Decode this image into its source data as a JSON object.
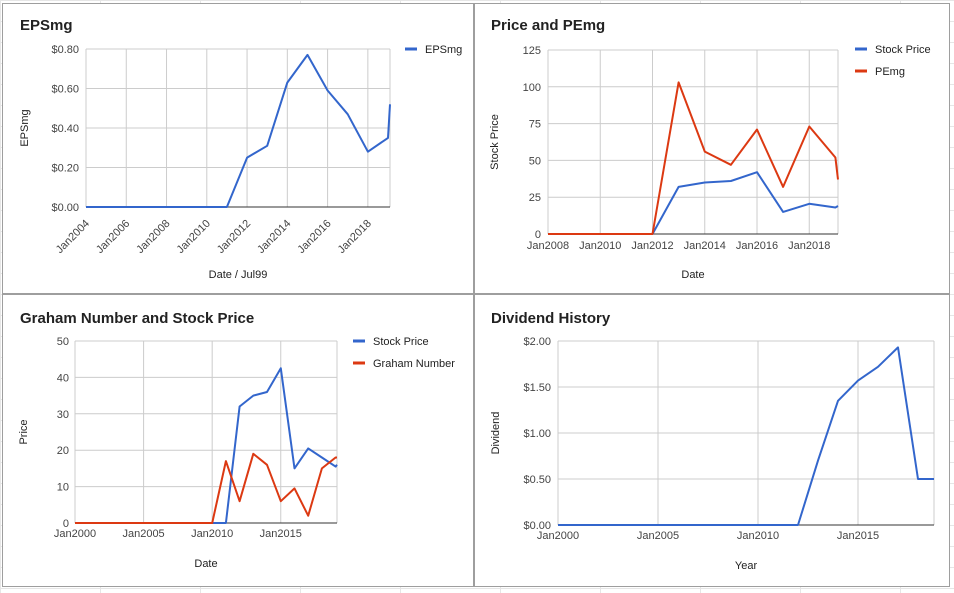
{
  "chart_data": [
    {
      "id": "epsmg",
      "type": "line",
      "title": "EPSmg",
      "xlabel": "Date / Jul99",
      "ylabel": "EPSmg",
      "x_ticks": [
        "Jan2004",
        "Jan2006",
        "Jan2008",
        "Jan2010",
        "Jan2012",
        "Jan2014",
        "Jan2016",
        "Jan2018"
      ],
      "y_ticks": [
        "$0.00",
        "$0.20",
        "$0.40",
        "$0.60",
        "$0.80"
      ],
      "xlim": [
        2004,
        2019.1
      ],
      "ylim": [
        0,
        0.8
      ],
      "legend_position": "top-right",
      "grid": true,
      "series": [
        {
          "name": "EPSmg",
          "color": "#3366cc",
          "x": [
            2004,
            2011,
            2012,
            2013,
            2014,
            2015,
            2016,
            2017,
            2018,
            2019,
            2019.1
          ],
          "y": [
            0,
            0,
            0.25,
            0.31,
            0.63,
            0.77,
            0.59,
            0.47,
            0.28,
            0.35,
            0.52
          ]
        }
      ]
    },
    {
      "id": "price-pemg",
      "type": "line",
      "title": "Price and PEmg",
      "xlabel": "Date",
      "ylabel": "Stock Price",
      "x_ticks": [
        "Jan2008",
        "Jan2010",
        "Jan2012",
        "Jan2014",
        "Jan2016",
        "Jan2018"
      ],
      "y_ticks": [
        "0",
        "25",
        "50",
        "75",
        "100",
        "125"
      ],
      "xlim": [
        2008,
        2019.1
      ],
      "ylim": [
        0,
        125
      ],
      "legend_position": "top-right",
      "grid": true,
      "series": [
        {
          "name": "Stock Price",
          "color": "#3366cc",
          "x": [
            2008,
            2012,
            2013,
            2014,
            2015,
            2016,
            2017,
            2018,
            2019,
            2019.1
          ],
          "y": [
            0,
            0,
            32,
            35,
            36,
            42,
            15,
            20.5,
            18,
            19
          ]
        },
        {
          "name": "PEmg",
          "color": "#dc3912",
          "x": [
            2008,
            2012,
            2013,
            2014,
            2015,
            2016,
            2017,
            2018,
            2019,
            2019.1
          ],
          "y": [
            0,
            0,
            103,
            56,
            47,
            71,
            32,
            73,
            52,
            37
          ]
        }
      ]
    },
    {
      "id": "graham",
      "type": "line",
      "title": "Graham Number and Stock Price",
      "xlabel": "Date",
      "ylabel": "Price",
      "x_ticks": [
        "Jan2000",
        "Jan2005",
        "Jan2010",
        "Jan2015"
      ],
      "y_ticks": [
        "0",
        "10",
        "20",
        "30",
        "40",
        "50"
      ],
      "xlim": [
        2000,
        2019.1
      ],
      "ylim": [
        0,
        50
      ],
      "legend_position": "top-right",
      "grid": true,
      "series": [
        {
          "name": "Stock Price",
          "color": "#3366cc",
          "x": [
            2000,
            2011,
            2012,
            2013,
            2014,
            2015,
            2016,
            2017,
            2018,
            2019,
            2019.1
          ],
          "y": [
            0,
            0,
            32,
            35,
            36,
            42.5,
            15,
            20.5,
            18,
            15.5,
            16
          ]
        },
        {
          "name": "Graham Number",
          "color": "#dc3912",
          "x": [
            2000,
            2010,
            2011,
            2012,
            2013,
            2014,
            2015,
            2016,
            2017,
            2018,
            2019,
            2019.1
          ],
          "y": [
            0,
            0,
            17,
            6,
            19,
            16,
            6,
            9.5,
            2,
            15,
            18,
            18
          ]
        }
      ]
    },
    {
      "id": "dividend",
      "type": "line",
      "title": "Dividend History",
      "xlabel": "Year",
      "ylabel": "Dividend",
      "x_ticks": [
        "Jan2000",
        "Jan2005",
        "Jan2010",
        "Jan2015"
      ],
      "y_ticks": [
        "$0.00",
        "$0.50",
        "$1.00",
        "$1.50",
        "$2.00"
      ],
      "xlim": [
        2000,
        2018.8
      ],
      "ylim": [
        0,
        2
      ],
      "legend_position": "none",
      "grid": true,
      "series": [
        {
          "name": "",
          "color": "#3366cc",
          "x": [
            2000,
            2012,
            2013,
            2014,
            2015,
            2016,
            2017,
            2018,
            2018.8
          ],
          "y": [
            0,
            0,
            0.7,
            1.35,
            1.57,
            1.72,
            1.93,
            0.5,
            0.5
          ]
        }
      ]
    }
  ]
}
